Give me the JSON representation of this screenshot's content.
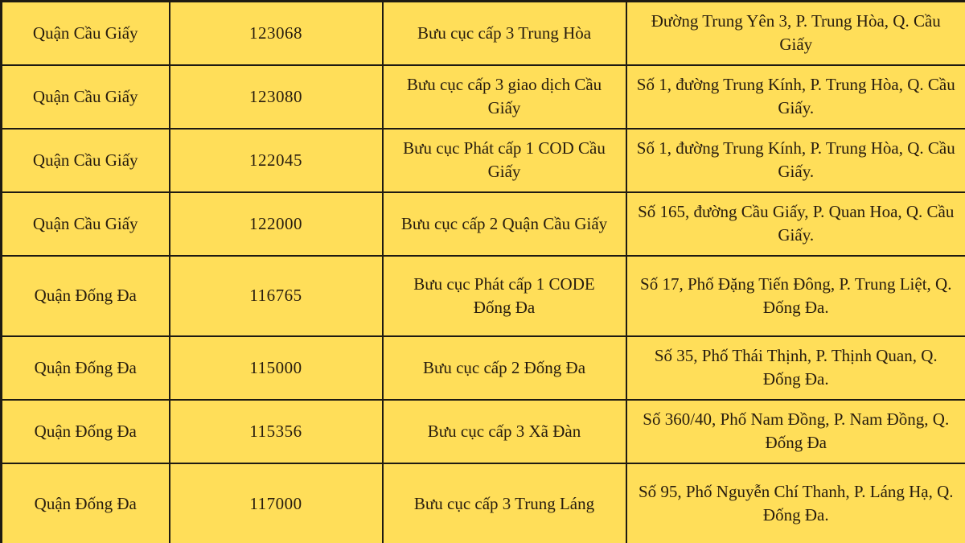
{
  "colors": {
    "background": "#ffde59",
    "border": "#1e1a12",
    "text": "#271c0e"
  },
  "table": {
    "columns": [
      "district",
      "postal_code",
      "office_name",
      "address"
    ],
    "rows": [
      {
        "district": "Quận Cầu Giấy",
        "postal_code": "123068",
        "office_name": "Bưu cục cấp 3 Trung Hòa",
        "address": "Đường Trung Yên 3, P. Trung Hòa, Q. Cầu Giấy"
      },
      {
        "district": "Quận Cầu Giấy",
        "postal_code": "123080",
        "office_name": "Bưu cục cấp 3 giao dịch Cầu Giấy",
        "address": "Số 1, đường Trung Kính, P. Trung Hòa, Q. Cầu Giấy."
      },
      {
        "district": "Quận Cầu Giấy",
        "postal_code": "122045",
        "office_name": "Bưu cục Phát cấp 1 COD Cầu Giấy",
        "address": "Số 1, đường Trung Kính, P. Trung Hòa, Q. Cầu Giấy."
      },
      {
        "district": "Quận Cầu Giấy",
        "postal_code": "122000",
        "office_name": "Bưu cục cấp 2 Quận Cầu Giấy",
        "address": "Số 165, đường Cầu Giấy, P. Quan Hoa, Q. Cầu Giấy."
      },
      {
        "district": "Quận Đống Đa",
        "postal_code": "116765",
        "office_name": "Bưu cục Phát cấp 1 CODE Đống Đa",
        "address": "Số 17, Phố Đặng Tiến Đông, P. Trung Liệt, Q. Đống Đa."
      },
      {
        "district": "Quận Đống Đa",
        "postal_code": "115000",
        "office_name": "Bưu cục cấp 2 Đống Đa",
        "address": "Số 35, Phố Thái Thịnh, P. Thịnh Quan, Q. Đống Đa."
      },
      {
        "district": "Quận Đống Đa",
        "postal_code": "115356",
        "office_name": "Bưu cục cấp 3 Xã Đàn",
        "address": "Số 360/40, Phố Nam Đồng, P. Nam Đồng, Q. Đống Đa"
      },
      {
        "district": "Quận Đống Đa",
        "postal_code": "117000",
        "office_name": "Bưu cục cấp 3 Trung Láng",
        "address": "Số 95, Phố Nguyễn Chí Thanh, P. Láng Hạ, Q. Đống Đa."
      }
    ]
  }
}
